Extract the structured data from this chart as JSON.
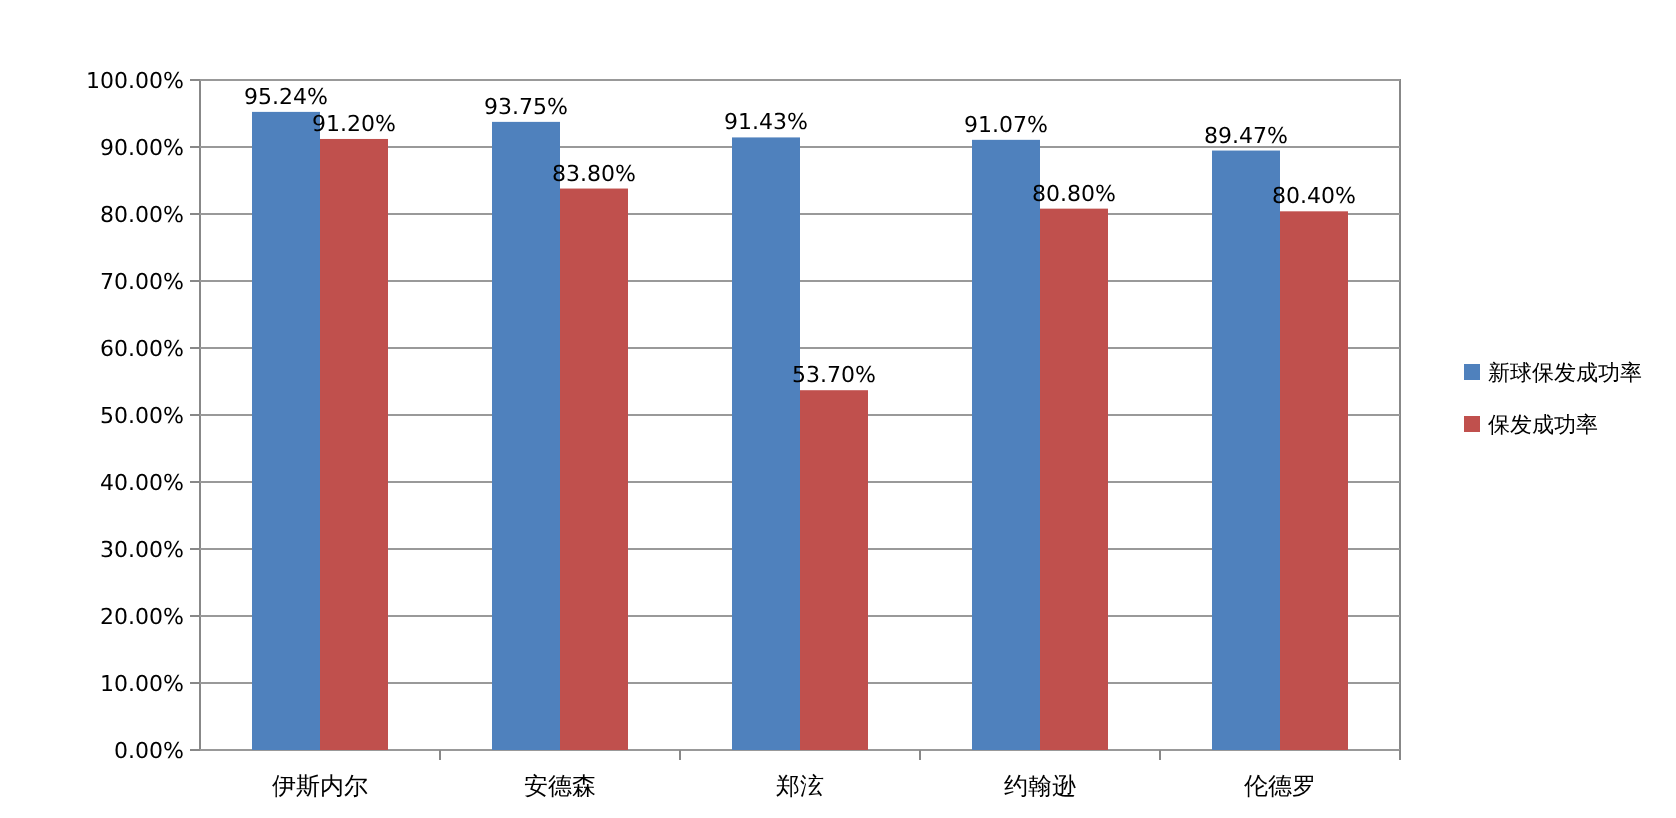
{
  "chart_data": {
    "type": "bar",
    "categories": [
      "伊斯内尔",
      "安德森",
      "郑泫",
      "约翰逊",
      "伦德罗"
    ],
    "series": [
      {
        "name": "新球保发成功率",
        "color": "#4f81bd",
        "values": [
          95.24,
          93.75,
          91.43,
          91.07,
          89.47
        ],
        "value_labels": [
          "95.24%",
          "93.75%",
          "91.43%",
          "91.07%",
          "89.47%"
        ]
      },
      {
        "name": "保发成功率",
        "color": "#c0504d",
        "values": [
          91.2,
          83.8,
          53.7,
          80.8,
          80.4
        ],
        "value_labels": [
          "91.20%",
          "83.80%",
          "53.70%",
          "80.80%",
          "80.40%"
        ]
      }
    ],
    "ylim": [
      0,
      100
    ],
    "yticks": [
      {
        "value": 0,
        "label": "0.00%"
      },
      {
        "value": 10,
        "label": "10.00%"
      },
      {
        "value": 20,
        "label": "20.00%"
      },
      {
        "value": 30,
        "label": "30.00%"
      },
      {
        "value": 40,
        "label": "40.00%"
      },
      {
        "value": 50,
        "label": "50.00%"
      },
      {
        "value": 60,
        "label": "60.00%"
      },
      {
        "value": 70,
        "label": "70.00%"
      },
      {
        "value": 80,
        "label": "80.00%"
      },
      {
        "value": 90,
        "label": "90.00%"
      },
      {
        "value": 100,
        "label": "100.00%"
      }
    ],
    "grid": "y",
    "legend": "right"
  }
}
